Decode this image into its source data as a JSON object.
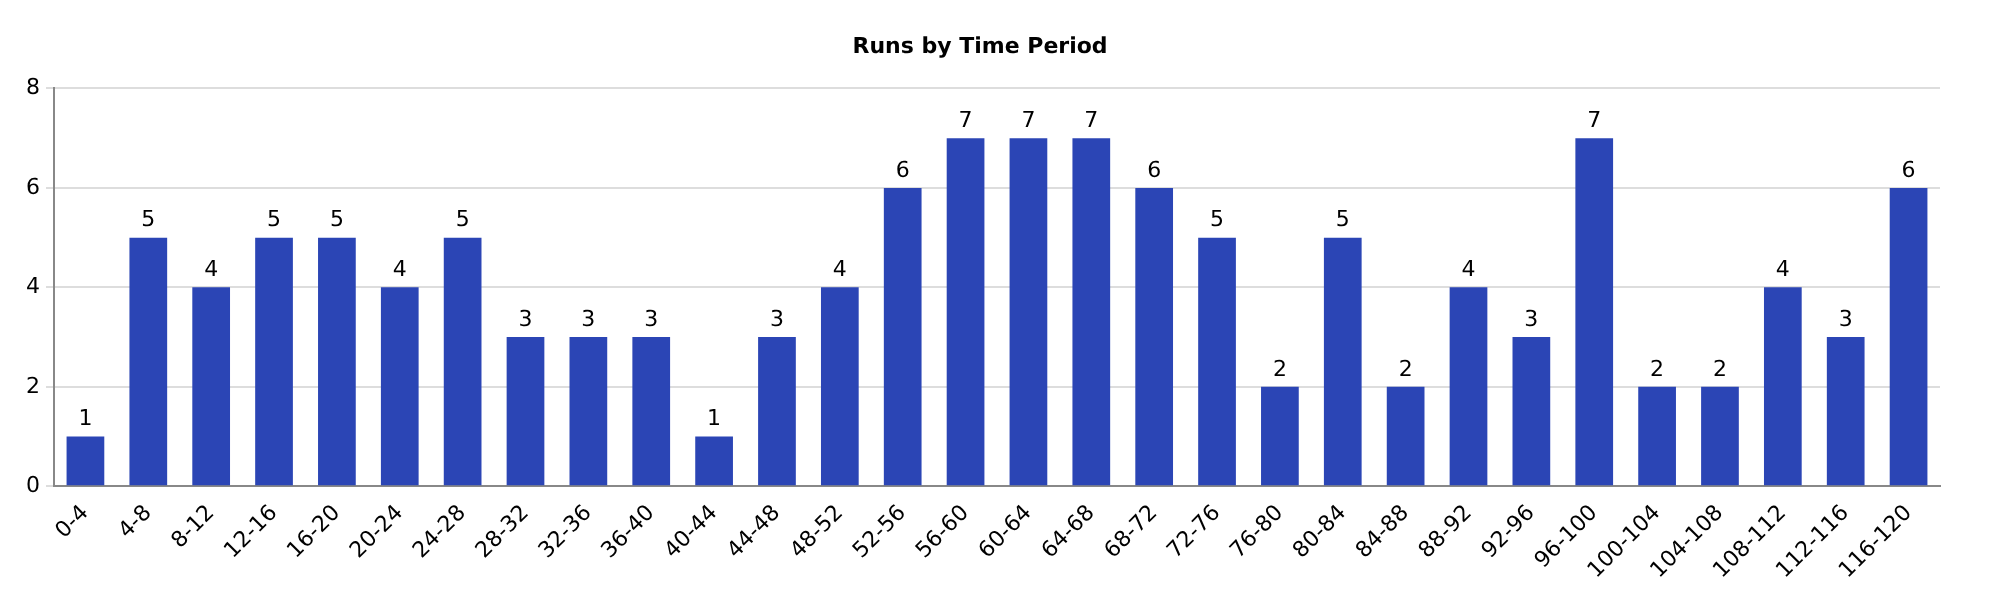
{
  "chart_data": {
    "type": "bar",
    "title": "Runs by Time Period",
    "categories": [
      "0-4",
      "4-8",
      "8-12",
      "12-16",
      "16-20",
      "20-24",
      "24-28",
      "28-32",
      "32-36",
      "36-40",
      "40-44",
      "44-48",
      "48-52",
      "52-56",
      "56-60",
      "60-64",
      "64-68",
      "68-72",
      "72-76",
      "76-80",
      "80-84",
      "84-88",
      "88-92",
      "92-96",
      "96-100",
      "100-104",
      "104-108",
      "108-112",
      "112-116",
      "116-120"
    ],
    "values": [
      1,
      5,
      4,
      5,
      5,
      4,
      5,
      3,
      3,
      3,
      1,
      3,
      4,
      6,
      7,
      7,
      7,
      6,
      5,
      2,
      5,
      2,
      4,
      3,
      7,
      2,
      2,
      4,
      3,
      6
    ],
    "color": "#2b45b5",
    "ylim": [
      0,
      8
    ],
    "yticks": [
      0,
      2,
      4,
      6,
      8
    ],
    "grid": "y",
    "data_labels": true
  }
}
